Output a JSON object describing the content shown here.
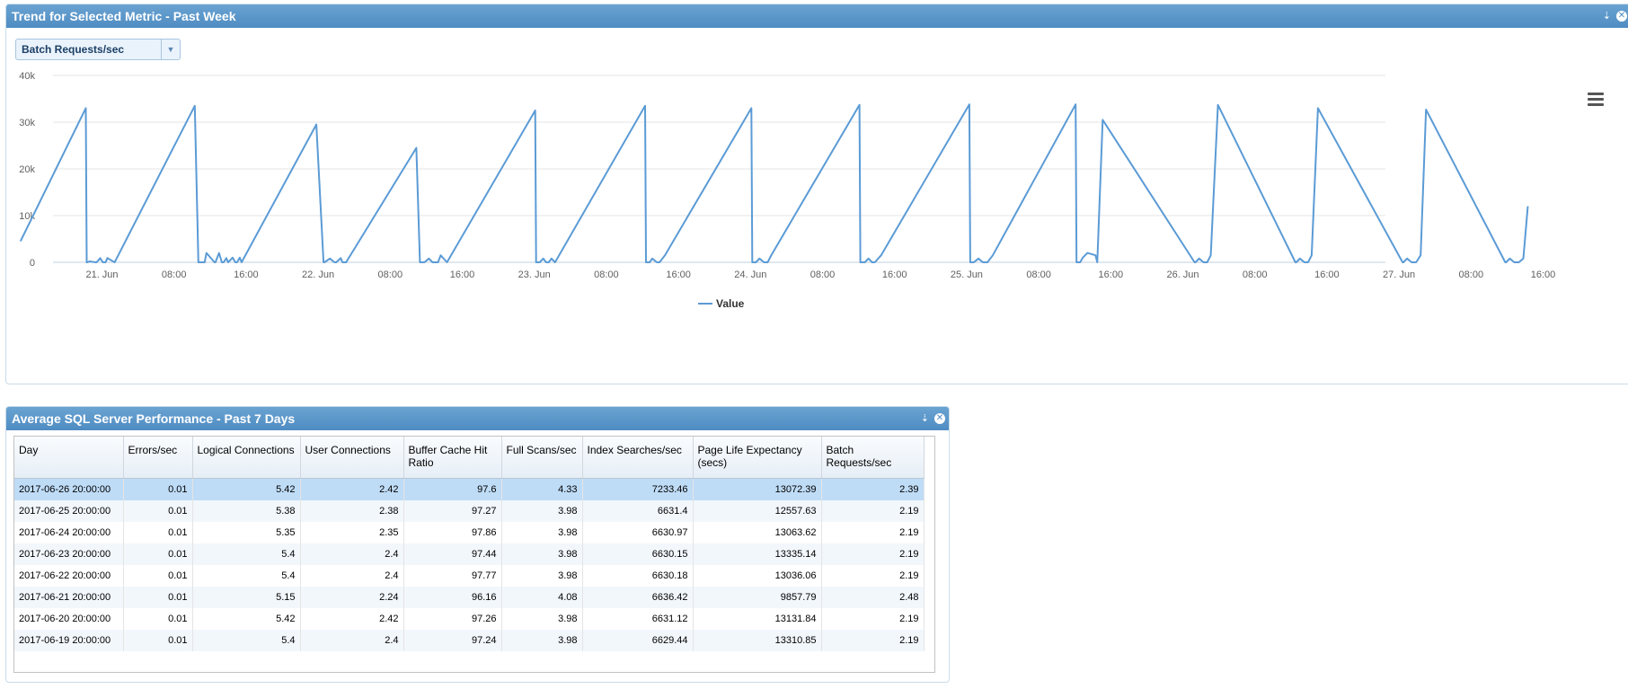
{
  "trend_panel": {
    "title": "Trend for Selected Metric - Past Week",
    "metric_selected": "Batch Requests/sec"
  },
  "chart_data": {
    "type": "line",
    "x_ticks": [
      "21. Jun",
      "08:00",
      "16:00",
      "22. Jun",
      "08:00",
      "16:00",
      "23. Jun",
      "08:00",
      "16:00",
      "24. Jun",
      "08:00",
      "16:00",
      "25. Jun",
      "08:00",
      "16:00",
      "26. Jun",
      "08:00",
      "16:00",
      "27. Jun",
      "08:00",
      "16:00"
    ],
    "y_ticks": [
      "0",
      "10k",
      "20k",
      "30k",
      "40k"
    ],
    "ylim": [
      0,
      40000
    ],
    "legend": "bottom-center",
    "series": [
      {
        "name": "Value",
        "color": "#5b9bd5",
        "x_hours": [
          -8.25,
          -1,
          -0.9,
          -0.8,
          -0.6,
          0.1,
          0.2,
          0.6,
          0.9,
          1.2,
          1.4,
          2.2,
          11.1,
          11.5,
          12.2,
          12.4,
          13.3,
          13.4,
          13.8,
          14.1,
          14.3,
          14.6,
          14.8,
          15.3,
          15.6,
          15.8,
          16.1,
          16.3,
          24.6,
          25.4,
          25.5,
          26.1,
          26.6,
          26.8,
          27.3,
          27.5,
          27.9,
          35.7,
          36.1,
          36.6,
          37.1,
          37.5,
          38.1,
          38.4,
          39.1,
          48.9,
          49,
          49.4,
          49.8,
          50.1,
          50.4,
          50.7,
          51.1,
          61.1,
          61.2,
          61.6,
          61.9,
          62.4,
          62.7,
          63.3,
          72.9,
          73,
          73.4,
          73.8,
          74.3,
          74.7,
          75.1,
          84.9,
          85,
          85.5,
          85.9,
          86.3,
          86.6,
          87.3,
          97.1,
          97.2,
          97.6,
          98.1,
          98.6,
          99.1,
          99.7,
          108.9,
          109,
          109.4,
          109.7,
          110.2,
          111.1,
          111.3,
          111.9,
          122.1,
          122.2,
          122.6,
          123.1,
          123.5,
          123.9,
          124.7,
          133.3,
          133.4,
          133.8,
          134.3,
          134.7,
          135.1,
          135.8,
          145.2,
          145.3,
          145.7,
          146.2,
          146.7,
          147.2,
          147.8,
          156.6,
          156.7,
          157.1,
          157.6,
          158.1,
          158.6,
          159.1,
          164
        ]
      }
    ]
  },
  "perf_panel": {
    "title": "Average SQL Server Performance - Past 7 Days",
    "columns": [
      "Day",
      "Errors/sec",
      "Logical Connections",
      "User Connections",
      "Buffer Cache Hit Ratio",
      "Full Scans/sec",
      "Index Searches/sec",
      "Page Life Expectancy (secs)",
      "Batch Requests/sec"
    ],
    "rows": [
      [
        "2017-06-26 20:00:00",
        "0.01",
        "5.42",
        "2.42",
        "97.6",
        "4.33",
        "7233.46",
        "13072.39",
        "2.39"
      ],
      [
        "2017-06-25 20:00:00",
        "0.01",
        "5.38",
        "2.38",
        "97.27",
        "3.98",
        "6631.4",
        "12557.63",
        "2.19"
      ],
      [
        "2017-06-24 20:00:00",
        "0.01",
        "5.35",
        "2.35",
        "97.86",
        "3.98",
        "6630.97",
        "13063.62",
        "2.19"
      ],
      [
        "2017-06-23 20:00:00",
        "0.01",
        "5.4",
        "2.4",
        "97.44",
        "3.98",
        "6630.15",
        "13335.14",
        "2.19"
      ],
      [
        "2017-06-22 20:00:00",
        "0.01",
        "5.4",
        "2.4",
        "97.77",
        "3.98",
        "6630.18",
        "13036.06",
        "2.19"
      ],
      [
        "2017-06-21 20:00:00",
        "0.01",
        "5.15",
        "2.24",
        "96.16",
        "4.08",
        "6636.42",
        "9857.79",
        "2.48"
      ],
      [
        "2017-06-20 20:00:00",
        "0.01",
        "5.42",
        "2.42",
        "97.26",
        "3.98",
        "6631.12",
        "13131.84",
        "2.19"
      ],
      [
        "2017-06-19 20:00:00",
        "0.01",
        "5.4",
        "2.4",
        "97.24",
        "3.98",
        "6629.44",
        "13310.85",
        "2.19"
      ]
    ],
    "selected_row": 0
  },
  "icons": {
    "pin": "pin-icon",
    "close": "close-icon",
    "menu": "hamburger-menu-icon",
    "dropdown": "chevron-down-icon"
  }
}
